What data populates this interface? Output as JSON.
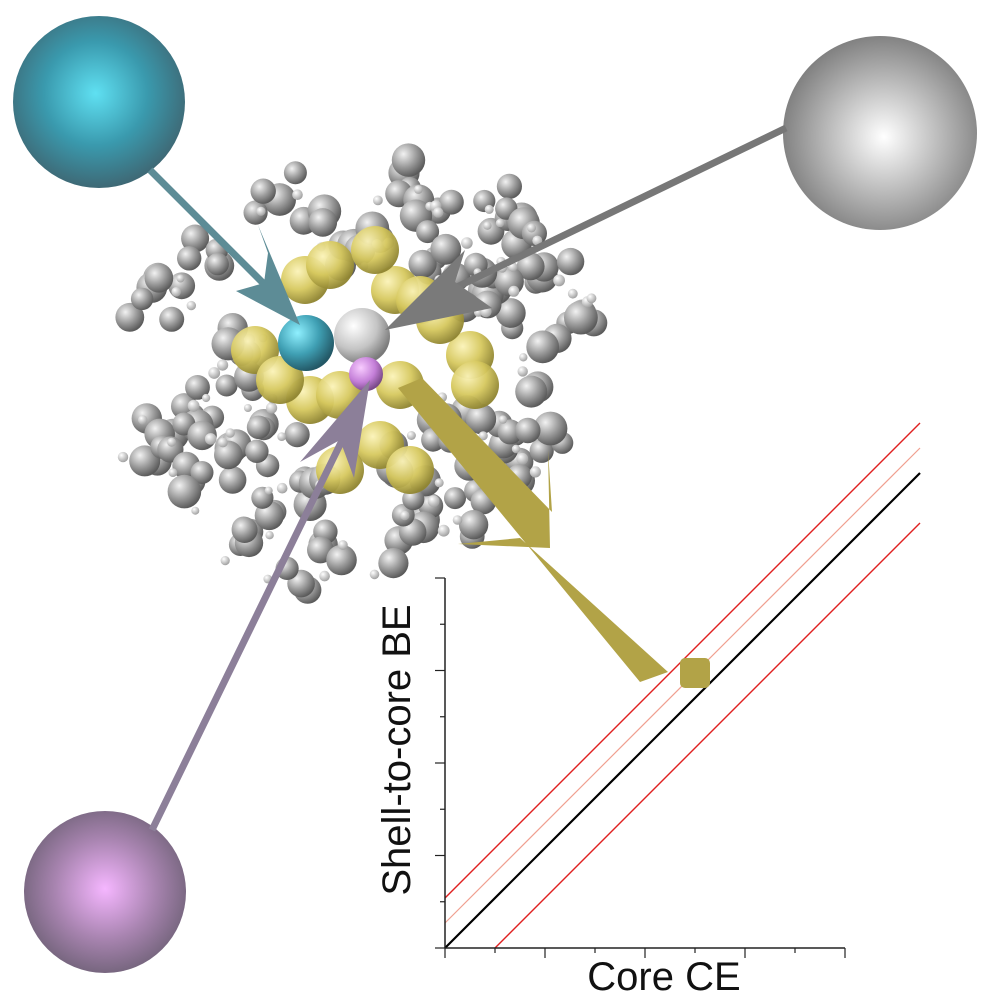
{
  "figure": {
    "xlabel": "Core CE",
    "ylabel": "Shell-to-core BE"
  },
  "colors": {
    "cyan_atom": "#4fc3d6",
    "white_atom": "#e8e8e8",
    "purple_atom": "#d79be8",
    "gold": "#b2a347",
    "ligand_gray": "#9a9a9a",
    "hydrogen": "#e6e6e6",
    "sulfur_yellow": "#d8cc5a",
    "diagonal_black": "#000000",
    "diagonal_red": "#e02020",
    "diagonal_light": "#f0a090"
  },
  "chart_data": {
    "type": "scatter",
    "xlabel": "Core CE",
    "ylabel": "Shell-to-core BE",
    "xlim": [
      0,
      8
    ],
    "ylim": [
      0,
      8
    ],
    "grid": false,
    "reference_lines": [
      {
        "kind": "parity",
        "color": "#000000",
        "offset": 0
      },
      {
        "kind": "bound",
        "color": "#e02020",
        "offset": 1.0
      },
      {
        "kind": "bound",
        "color": "#e02020",
        "offset": -1.0
      },
      {
        "kind": "bound-inner",
        "color": "#f0a090",
        "offset": 0.5
      }
    ],
    "points": [
      {
        "x": 5.0,
        "y": 5.5,
        "color": "#b2a347",
        "marker": "square"
      }
    ]
  }
}
